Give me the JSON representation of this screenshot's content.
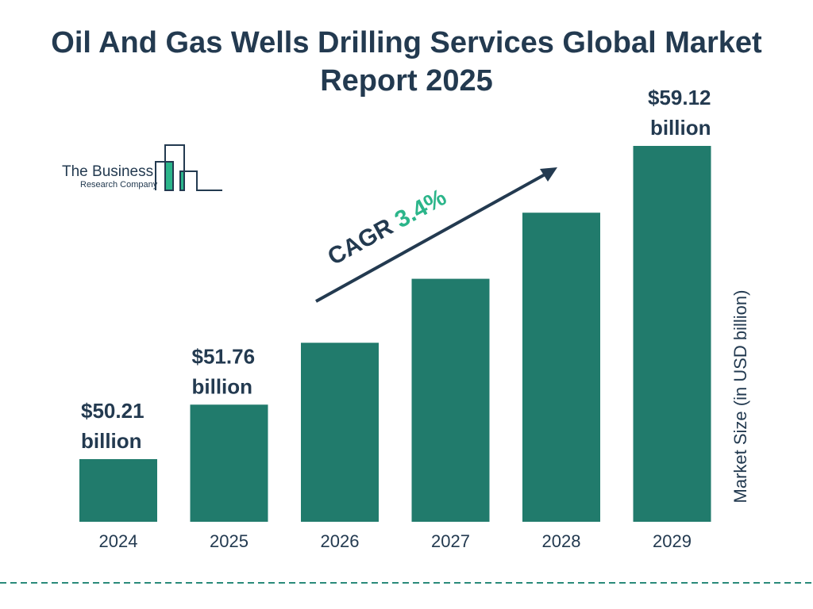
{
  "chart_data": {
    "type": "bar",
    "title": "Oil And Gas Wells Drilling Services Global Market Report 2025",
    "categories": [
      "2024",
      "2025",
      "2026",
      "2027",
      "2028",
      "2029"
    ],
    "values": [
      50.21,
      51.76,
      53.52,
      55.34,
      57.22,
      59.12
    ],
    "data_labels": [
      "$50.21 billion",
      "$51.76 billion",
      "",
      "",
      "",
      "$59.12 billion"
    ],
    "data_label_lines": [
      [
        "$50.21",
        "billion"
      ],
      [
        "$51.76",
        "billion"
      ],
      null,
      null,
      null,
      [
        "$59.12",
        "billion"
      ]
    ],
    "ylabel": "Market Size (in USD billion)",
    "xlabel": "",
    "grid": false,
    "annotation": {
      "prefix": "CAGR ",
      "value": "3.4%"
    },
    "colors": {
      "bar": "#217b6c",
      "text": "#233a50",
      "cagr": "#2bb58a",
      "divider": "#2a8a7a"
    }
  },
  "logo": {
    "line1": "The Business",
    "line2": "Research Company"
  }
}
